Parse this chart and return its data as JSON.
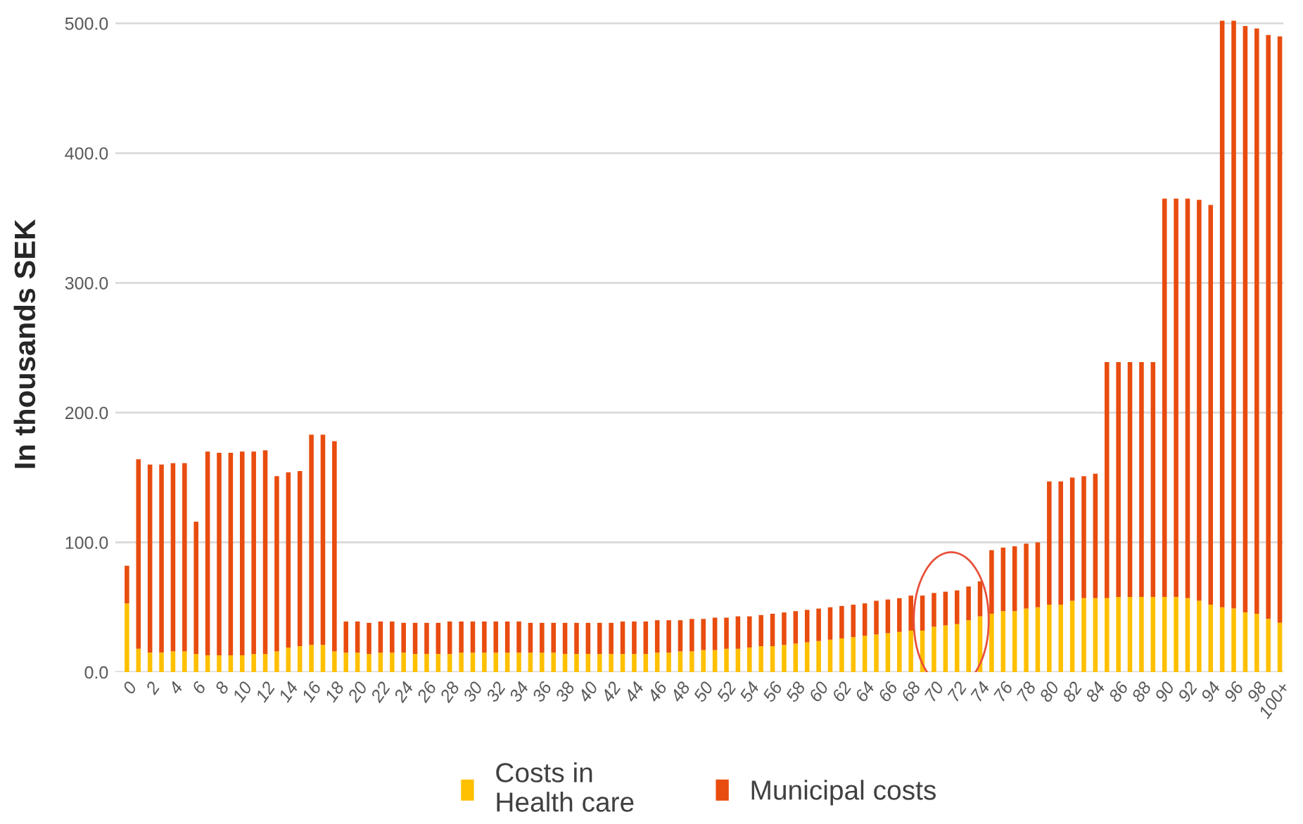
{
  "chart_data": {
    "type": "bar",
    "stacked": true,
    "ylabel": "In thousands SEK",
    "categories": [
      "0",
      null,
      "2",
      null,
      "4",
      null,
      "6",
      null,
      "8",
      null,
      "10",
      null,
      "12",
      null,
      "14",
      null,
      "16",
      null,
      "18",
      null,
      "20",
      null,
      "22",
      null,
      "24",
      null,
      "26",
      null,
      "28",
      null,
      "30",
      null,
      "32",
      null,
      "34",
      null,
      "36",
      null,
      "38",
      null,
      "40",
      null,
      "42",
      null,
      "44",
      null,
      "46",
      null,
      "48",
      null,
      "50",
      null,
      "52",
      null,
      "54",
      null,
      "56",
      null,
      "58",
      null,
      "60",
      null,
      "62",
      null,
      "64",
      null,
      "66",
      null,
      "68",
      null,
      "70",
      null,
      "72",
      null,
      "74",
      null,
      "76",
      null,
      "78",
      null,
      "80",
      null,
      "82",
      null,
      "84",
      null,
      "86",
      null,
      "88",
      null,
      "90",
      null,
      "92",
      null,
      "94",
      null,
      "96",
      null,
      "98",
      null,
      "100+"
    ],
    "series": [
      {
        "name": "Costs in\nHealth care",
        "color": "#ffc000",
        "values": [
          53,
          18,
          15,
          15,
          16,
          16,
          14,
          13,
          13,
          13,
          13,
          14,
          14,
          16,
          19,
          20,
          21,
          21,
          16,
          15,
          15,
          14,
          15,
          15,
          15,
          14,
          14,
          14,
          14,
          15,
          15,
          15,
          15,
          15,
          15,
          15,
          15,
          15,
          14,
          14,
          14,
          14,
          14,
          14,
          14,
          14,
          15,
          15,
          16,
          16,
          17,
          17,
          18,
          18,
          19,
          20,
          20,
          21,
          22,
          23,
          24,
          25,
          26,
          27,
          28,
          29,
          30,
          31,
          32,
          32,
          35,
          36,
          37,
          40,
          43,
          45,
          47,
          47,
          49,
          50,
          52,
          52,
          55,
          57,
          57,
          57,
          58,
          58,
          58,
          58,
          58,
          58,
          57,
          55,
          52,
          50,
          49,
          46,
          45,
          41,
          38
        ]
      },
      {
        "name": "Municipal costs",
        "color": "#e84c0e",
        "values": [
          29,
          146,
          145,
          145,
          145,
          145,
          102,
          157,
          156,
          156,
          157,
          156,
          157,
          135,
          135,
          135,
          162,
          162,
          162,
          24,
          24,
          24,
          24,
          24,
          23,
          24,
          24,
          24,
          25,
          24,
          24,
          24,
          24,
          24,
          24,
          23,
          23,
          23,
          24,
          24,
          24,
          24,
          24,
          25,
          25,
          25,
          25,
          25,
          24,
          25,
          24,
          25,
          24,
          25,
          24,
          24,
          25,
          25,
          25,
          25,
          25,
          25,
          25,
          25,
          25,
          26,
          26,
          26,
          27,
          27,
          26,
          26,
          26,
          26,
          27,
          49,
          49,
          50,
          50,
          50,
          95,
          95,
          95,
          94,
          96,
          182,
          181,
          181,
          181,
          181,
          307,
          307,
          308,
          309,
          308,
          452,
          453,
          452,
          451,
          450,
          452
        ]
      }
    ],
    "ylim": [
      0,
      505
    ],
    "yticks": [
      {
        "value": 0,
        "label": "0.0"
      },
      {
        "value": 100,
        "label": "100.0"
      },
      {
        "value": 200,
        "label": "200.0"
      },
      {
        "value": 300,
        "label": "300.0"
      },
      {
        "value": 400,
        "label": "400.0"
      },
      {
        "value": 500,
        "label": "500.0"
      }
    ],
    "grid": "y",
    "legend": "bottom"
  }
}
